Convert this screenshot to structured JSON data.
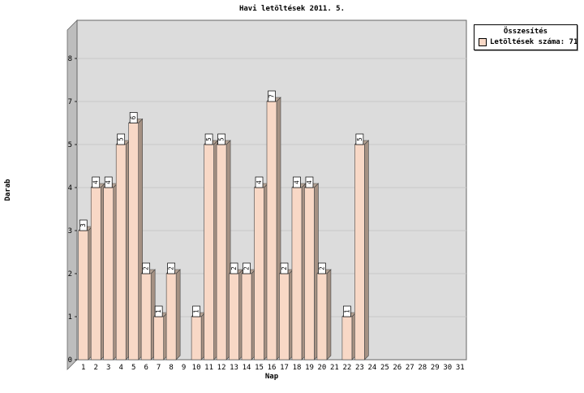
{
  "title": "Havi letöltések 2011. 5.",
  "y_axis_title": "Darab",
  "x_axis_title": "Nap",
  "legend": {
    "title": "Összesítés",
    "series_label": "Letöltések száma: 71"
  },
  "chart_data": {
    "type": "bar",
    "title": "Havi letöltések 2011. 5.",
    "xlabel": "Nap",
    "ylabel": "Darab",
    "x": [
      1,
      2,
      3,
      4,
      5,
      6,
      7,
      8,
      9,
      10,
      11,
      12,
      13,
      14,
      15,
      16,
      17,
      18,
      19,
      20,
      21,
      22,
      23,
      24,
      25,
      26,
      27,
      28,
      29,
      30,
      31
    ],
    "values": [
      3,
      4,
      4,
      5,
      6,
      2,
      1,
      2,
      0,
      1,
      5,
      5,
      2,
      2,
      4,
      7,
      2,
      4,
      4,
      2,
      0,
      1,
      5,
      0,
      0,
      0,
      0,
      0,
      0,
      0,
      0
    ],
    "total_downloads": 71,
    "y_tick_labels": [
      0,
      1,
      2,
      3,
      4,
      5,
      7,
      8
    ],
    "ylim": [
      0,
      8.9
    ],
    "grid": true,
    "legend_position": "top-right-outside",
    "legend_title": "Összesítés",
    "legend_entry": "Letöltések száma: 71",
    "bar_value_labels_shown": true,
    "style": "3d-bars",
    "colors": {
      "bar_front": "#F8D8C6",
      "bar_side": "#A59183",
      "bar_top": "#B5A395",
      "plot_bg": "#DCDCDC",
      "wall": "#BDBDBD",
      "grid": "#C9C9C9",
      "outline": "#666666"
    }
  }
}
